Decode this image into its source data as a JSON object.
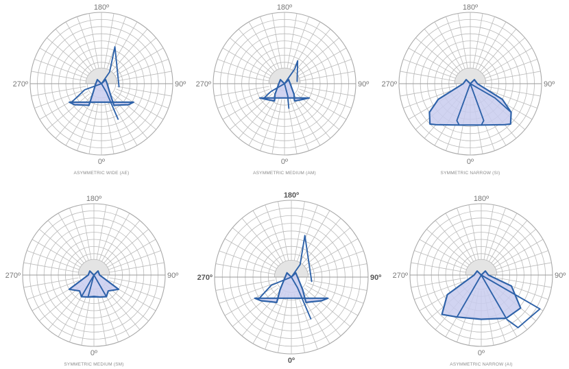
{
  "chart_data": [
    {
      "type": "polar",
      "title": "ASYMMETRIC WIDE (AE)",
      "angle_labels": {
        "top": "180º",
        "right": "90º",
        "bottom": "0º",
        "left": "270º"
      },
      "curves": [
        {
          "points": [
            [
              300,
              52
            ],
            [
              308,
              48
            ],
            [
              330,
              35
            ],
            [
              318,
              18
            ],
            [
              270,
              8
            ],
            [
              226,
              8
            ],
            [
              180,
              0
            ],
            [
              134,
              8
            ],
            [
              90,
              8
            ],
            [
              42,
              18
            ],
            [
              30,
              35
            ],
            [
              52,
              48
            ],
            [
              60,
              52
            ]
          ],
          "closed": true
        },
        {
          "points": [
            [
              0,
              0
            ],
            [
              30,
              14
            ],
            [
              25,
              55
            ]
          ]
        },
        {
          "points": [
            [
              0,
              0
            ],
            [
              145,
              20
            ],
            [
              160,
              55
            ],
            [
              80,
              25
            ]
          ]
        },
        {
          "points": [
            [
              0,
              0
            ],
            [
              290,
              25
            ],
            [
              302,
              50
            ]
          ]
        }
      ]
    },
    {
      "type": "polar",
      "title": "ASYMMETRIC MEDIUM (AM)",
      "angle_labels": {
        "top": "180º",
        "right": "90º",
        "bottom": "0º",
        "left": "270º"
      },
      "curves": [
        {
          "points": [
            [
              300,
              40
            ],
            [
              315,
              32
            ],
            [
              330,
              28
            ],
            [
              318,
              20
            ],
            [
              270,
              8
            ],
            [
              226,
              8
            ],
            [
              180,
              0
            ],
            [
              134,
              8
            ],
            [
              90,
              8
            ],
            [
              42,
              20
            ],
            [
              30,
              28
            ],
            [
              45,
              32
            ],
            [
              60,
              40
            ]
          ],
          "closed": true
        },
        {
          "points": [
            [
              0,
              0
            ],
            [
              15,
              18
            ],
            [
              10,
              35
            ]
          ]
        },
        {
          "points": [
            [
              0,
              0
            ],
            [
              145,
              25
            ],
            [
              150,
              37
            ],
            [
              100,
              18
            ]
          ]
        },
        {
          "points": [
            [
              0,
              0
            ],
            [
              300,
              22
            ],
            [
              305,
              35
            ]
          ]
        }
      ]
    },
    {
      "type": "polar",
      "title": "SYMMETRIC NARROW (SI)",
      "angle_labels": {
        "top": "180º",
        "right": "90º",
        "bottom": "0º",
        "left": "270º"
      },
      "curves": [
        {
          "points": [
            [
              270,
              10
            ],
            [
              296,
              50
            ],
            [
              305,
              70
            ],
            [
              315,
              80
            ],
            [
              320,
              75
            ],
            [
              345,
              60
            ],
            [
              0,
              58
            ],
            [
              15,
              60
            ],
            [
              40,
              75
            ],
            [
              45,
              80
            ],
            [
              55,
              70
            ],
            [
              64,
              50
            ],
            [
              90,
              10
            ],
            [
              134,
              8
            ],
            [
              180,
              0
            ],
            [
              226,
              8
            ]
          ],
          "closed": true
        },
        {
          "points": [
            [
              0,
              0
            ],
            [
              340,
              55
            ],
            [
              345,
              60
            ]
          ]
        },
        {
          "points": [
            [
              0,
              0
            ],
            [
              20,
              55
            ],
            [
              15,
              60
            ]
          ]
        },
        {
          "points": [
            [
              0,
              0
            ],
            [
              60,
              40
            ],
            [
              55,
              70
            ]
          ]
        }
      ]
    },
    {
      "type": "polar",
      "title": "SYMMETRIC MEDIUM (SM)",
      "angle_labels": {
        "top": "180º",
        "right": "90º",
        "bottom": "0º",
        "left": "270º"
      },
      "curves": [
        {
          "points": [
            [
              300,
              40
            ],
            [
              318,
              30
            ],
            [
              330,
              35
            ],
            [
              345,
              32
            ],
            [
              0,
              30
            ],
            [
              15,
              32
            ],
            [
              30,
              35
            ],
            [
              42,
              30
            ],
            [
              60,
              40
            ],
            [
              90,
              8
            ],
            [
              134,
              8
            ],
            [
              180,
              0
            ],
            [
              226,
              8
            ],
            [
              270,
              8
            ]
          ],
          "closed": true
        },
        {
          "points": [
            [
              0,
              0
            ],
            [
              330,
              35
            ]
          ]
        },
        {
          "points": [
            [
              0,
              0
            ],
            [
              30,
              35
            ]
          ]
        },
        {
          "points": [
            [
              0,
              0
            ],
            [
              345,
              32
            ],
            [
              15,
              32
            ]
          ]
        }
      ]
    },
    {
      "type": "polar",
      "title": "",
      "angle_labels": {
        "top": "180º",
        "right": "90º",
        "bottom": "0º",
        "left": "270º"
      },
      "curves": [
        {
          "points": [
            [
              300,
              55
            ],
            [
              308,
              50
            ],
            [
              330,
              38
            ],
            [
              318,
              22
            ],
            [
              270,
              8
            ],
            [
              226,
              8
            ],
            [
              180,
              0
            ],
            [
              134,
              8
            ],
            [
              90,
              8
            ],
            [
              42,
              22
            ],
            [
              30,
              38
            ],
            [
              52,
              50
            ],
            [
              60,
              55
            ]
          ],
          "closed": true
        },
        {
          "points": [
            [
              0,
              0
            ],
            [
              30,
              16
            ],
            [
              25,
              60
            ]
          ]
        },
        {
          "points": [
            [
              0,
              0
            ],
            [
              145,
              20
            ],
            [
              162,
              57
            ],
            [
              78,
              27
            ]
          ]
        },
        {
          "points": [
            [
              0,
              0
            ],
            [
              292,
              28
            ],
            [
              304,
              52
            ]
          ]
        }
      ]
    },
    {
      "type": "polar",
      "title": "ASYMMETRIC NARROW (AI)",
      "angle_labels": {
        "top": "180º",
        "right": "90º",
        "bottom": "0º",
        "left": "270º"
      },
      "curves": [
        {
          "points": [
            [
              270,
              10
            ],
            [
              300,
              55
            ],
            [
              315,
              78
            ],
            [
              330,
              68
            ],
            [
              0,
              62
            ],
            [
              30,
              70
            ],
            [
              50,
              72
            ],
            [
              70,
              45
            ],
            [
              90,
              10
            ],
            [
              134,
              8
            ],
            [
              180,
              0
            ],
            [
              226,
              8
            ]
          ],
          "closed": true
        },
        {
          "points": [
            [
              0,
              0
            ],
            [
              60,
              50
            ],
            [
              60,
              95
            ],
            [
              35,
              90
            ],
            [
              30,
              72
            ]
          ]
        },
        {
          "points": [
            [
              0,
              0
            ],
            [
              330,
              68
            ]
          ]
        },
        {
          "points": [
            [
              0,
              0
            ],
            [
              30,
              70
            ]
          ]
        }
      ]
    }
  ]
}
